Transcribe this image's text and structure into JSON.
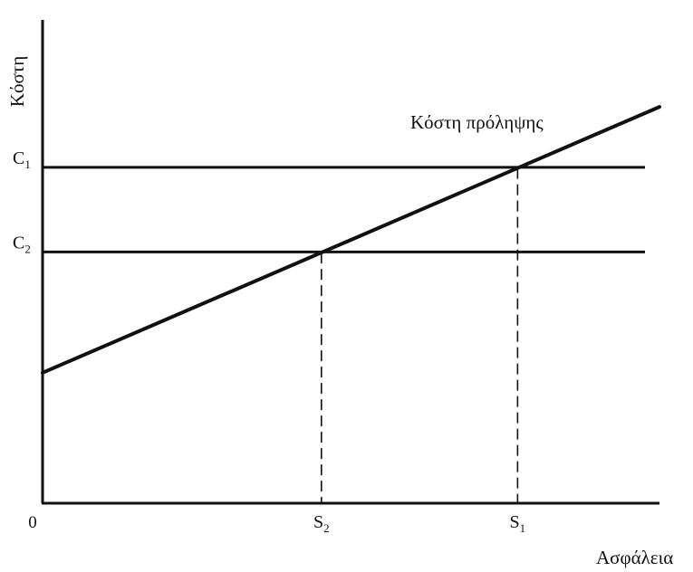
{
  "chart_data": {
    "type": "line",
    "ylabel": "Κόστη",
    "xlabel": "Ασφάλεια",
    "origin_label": "0",
    "xlim": [
      0,
      1
    ],
    "ylim": [
      0,
      1
    ],
    "line_label": "Κόστη πρόληψης",
    "cost_line": {
      "x": [
        0,
        1
      ],
      "y": [
        0.27,
        0.82
      ]
    },
    "horizontal_levels": [
      {
        "label": "C",
        "sub": "1",
        "y": 0.695
      },
      {
        "label": "C",
        "sub": "2",
        "y": 0.52
      }
    ],
    "x_markers": [
      {
        "label": "S",
        "sub": "2",
        "x": 0.452
      },
      {
        "label": "S",
        "sub": "1",
        "x": 0.77
      }
    ]
  }
}
